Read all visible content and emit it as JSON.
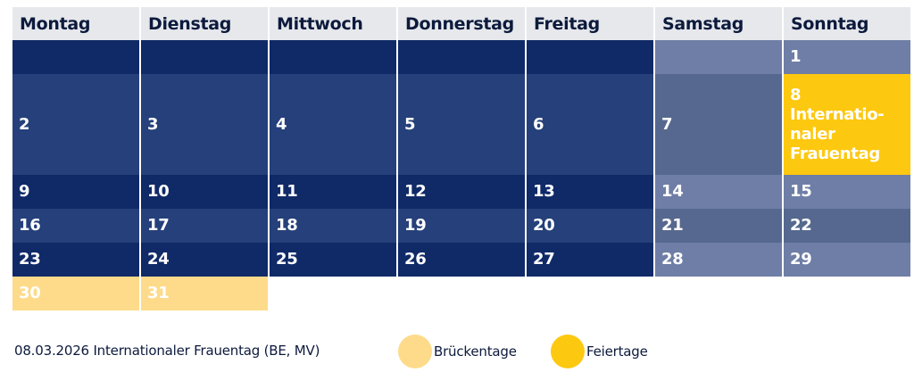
{
  "weekdays": [
    "Montag",
    "Dienstag",
    "Mittwoch",
    "Donnerstag",
    "Freitag",
    "Samstag",
    "Sonntag"
  ],
  "days": {
    "d1": "1",
    "d2": "2",
    "d3": "3",
    "d4": "4",
    "d5": "5",
    "d6": "6",
    "d7": "7",
    "d8": "8",
    "d8_holiday": "Internatio-\nnaler\nFrauentag",
    "d9": "9",
    "d10": "10",
    "d11": "11",
    "d12": "12",
    "d13": "13",
    "d14": "14",
    "d15": "15",
    "d16": "16",
    "d17": "17",
    "d18": "18",
    "d19": "19",
    "d20": "20",
    "d21": "21",
    "d22": "22",
    "d23": "23",
    "d24": "24",
    "d25": "25",
    "d26": "26",
    "d27": "27",
    "d28": "28",
    "d29": "29",
    "d30": "30",
    "d31": "31"
  },
  "footer": {
    "note": "08.03.2026 Internationaler Frauentag (BE, MV)",
    "legend_bridge": "Brückentage",
    "legend_holiday": "Feiertage"
  },
  "colors": {
    "weekday_dark": "#102a68",
    "weekday_light": "#25407a",
    "weekend_dark": "#6e7ea6",
    "weekend_light": "#56688f",
    "bridge_day": "#fddb8a",
    "holiday": "#fdc810"
  }
}
